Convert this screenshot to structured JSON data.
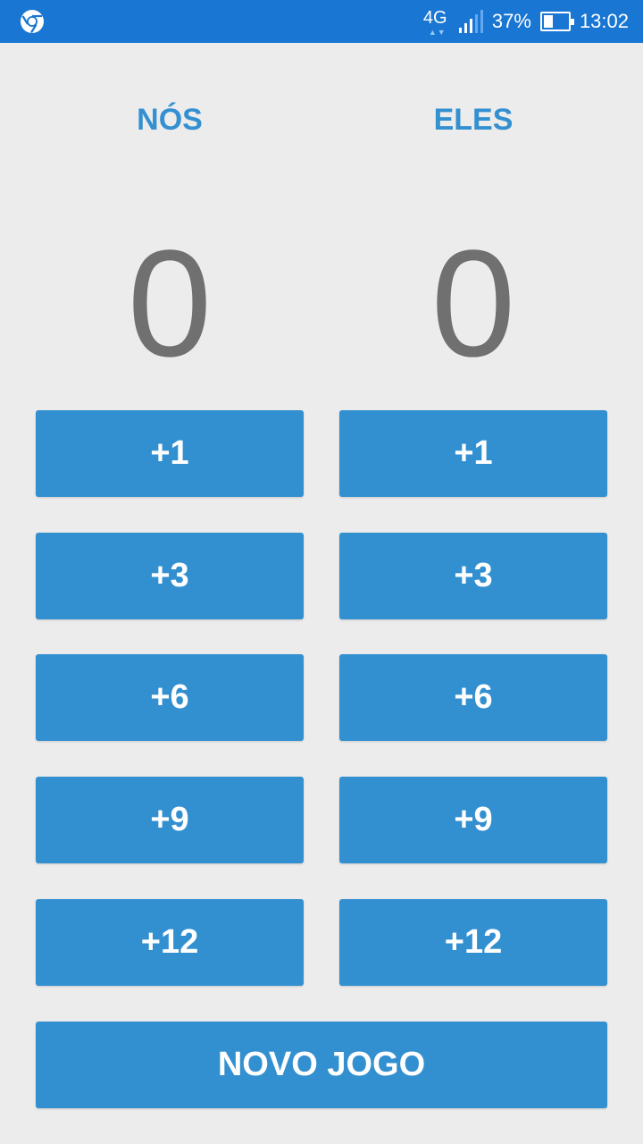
{
  "status_bar": {
    "network_type": "4G",
    "battery_percent": "37%",
    "battery_level": 0.37,
    "time": "13:02",
    "left_icon": "chrome-icon"
  },
  "teams": [
    {
      "title": "NÓS",
      "score": "0",
      "buttons": [
        "+1",
        "+3",
        "+6",
        "+9",
        "+12"
      ]
    },
    {
      "title": "ELES",
      "score": "0",
      "buttons": [
        "+1",
        "+3",
        "+6",
        "+9",
        "+12"
      ]
    }
  ],
  "new_game_label": "NOVO JOGO",
  "colors": {
    "accent": "#3390d0",
    "status_bar": "#1976d2",
    "background": "#ececec",
    "score_text": "#707070"
  }
}
